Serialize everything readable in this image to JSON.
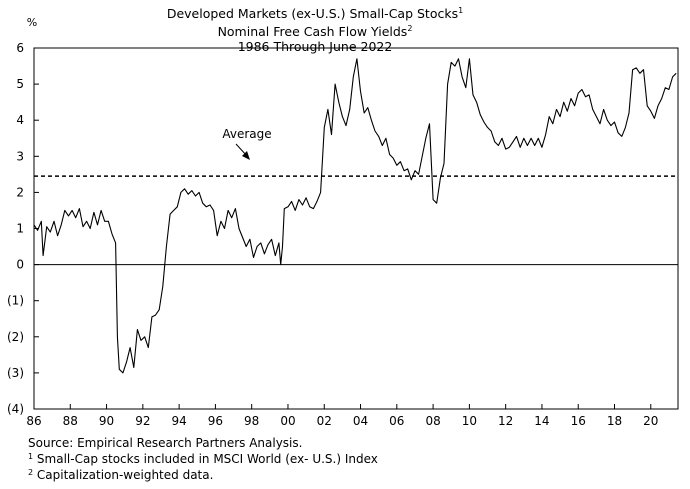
{
  "chart_data": {
    "type": "line",
    "title": "Developed Markets (ex-U.S.) Small-Cap Stocks",
    "title_mark": "1",
    "subtitle": "Nominal Free Cash Flow Yields",
    "subtitle_mark": "2",
    "period": "1986 Through June 2022",
    "ylabel": "%",
    "ylim": [
      -4,
      6
    ],
    "xlim": [
      1986,
      2021.5
    ],
    "y_ticks": [
      6,
      5,
      4,
      3,
      2,
      1,
      0,
      -1,
      -2,
      -3,
      -4
    ],
    "y_tick_labels": [
      "6",
      "5",
      "4",
      "3",
      "2",
      "1",
      "0",
      "(1)",
      "(2)",
      "(3)",
      "(4)"
    ],
    "x_ticks": [
      1986,
      1988,
      1990,
      1992,
      1994,
      1996,
      1998,
      2000,
      2002,
      2004,
      2006,
      2008,
      2010,
      2012,
      2014,
      2016,
      2018,
      2020
    ],
    "x_tick_labels": [
      "86",
      "88",
      "90",
      "92",
      "94",
      "96",
      "98",
      "00",
      "02",
      "04",
      "06",
      "08",
      "10",
      "12",
      "14",
      "16",
      "18",
      "20"
    ],
    "average": {
      "label": "Average",
      "value": 2.45
    },
    "series": [
      {
        "x": [
          1986.0,
          1986.2,
          1986.4,
          1986.5,
          1986.7,
          1986.9,
          1987.1,
          1987.3,
          1987.5,
          1987.7,
          1987.9,
          1988.1,
          1988.3,
          1988.5,
          1988.7,
          1988.9,
          1989.1,
          1989.3,
          1989.5,
          1989.7,
          1989.9,
          1990.1,
          1990.3,
          1990.5,
          1990.6,
          1990.7,
          1990.9,
          1991.1,
          1991.3,
          1991.5,
          1991.7,
          1991.9,
          1992.1,
          1992.3,
          1992.5,
          1992.7,
          1992.9,
          1993.1,
          1993.3,
          1993.5,
          1993.7,
          1993.9,
          1994.1,
          1994.3,
          1994.5,
          1994.7,
          1994.9,
          1995.1,
          1995.3,
          1995.5,
          1995.7,
          1995.9,
          1996.1,
          1996.3,
          1996.5,
          1996.7,
          1996.9,
          1997.1,
          1997.3,
          1997.5,
          1997.7,
          1997.9,
          1998.1,
          1998.3,
          1998.5,
          1998.7,
          1998.9,
          1999.1,
          1999.3,
          1999.5,
          1999.6,
          1999.7,
          1999.8,
          2000.0,
          2000.2,
          2000.4,
          2000.6,
          2000.8,
          2001.0,
          2001.2,
          2001.4,
          2001.6,
          2001.8,
          2002.0,
          2002.2,
          2002.4,
          2002.6,
          2002.8,
          2003.0,
          2003.2,
          2003.4,
          2003.6,
          2003.8,
          2004.0,
          2004.2,
          2004.4,
          2004.6,
          2004.8,
          2005.0,
          2005.2,
          2005.4,
          2005.6,
          2005.8,
          2006.0,
          2006.2,
          2006.4,
          2006.6,
          2006.8,
          2007.0,
          2007.2,
          2007.4,
          2007.6,
          2007.8,
          2008.0,
          2008.2,
          2008.4,
          2008.6,
          2008.8,
          2009.0,
          2009.2,
          2009.4,
          2009.6,
          2009.8,
          2010.0,
          2010.2,
          2010.4,
          2010.6,
          2010.8,
          2011.0,
          2011.2,
          2011.4,
          2011.6,
          2011.8,
          2012.0,
          2012.2,
          2012.4,
          2012.6,
          2012.8,
          2013.0,
          2013.2,
          2013.4,
          2013.6,
          2013.8,
          2014.0,
          2014.2,
          2014.4,
          2014.6,
          2014.8,
          2015.0,
          2015.2,
          2015.4,
          2015.6,
          2015.8,
          2016.0,
          2016.2,
          2016.4,
          2016.6,
          2016.8,
          2017.0,
          2017.2,
          2017.4,
          2017.6,
          2017.8,
          2018.0,
          2018.2,
          2018.4,
          2018.6,
          2018.8,
          2019.0,
          2019.2,
          2019.4,
          2019.6,
          2019.8,
          2020.0,
          2020.2,
          2020.4,
          2020.6,
          2020.8,
          2021.0,
          2021.2,
          2021.4
        ],
        "values": [
          1.1,
          0.95,
          1.2,
          0.25,
          1.05,
          0.9,
          1.2,
          0.8,
          1.1,
          1.5,
          1.35,
          1.5,
          1.3,
          1.55,
          1.05,
          1.2,
          1.0,
          1.45,
          1.1,
          1.5,
          1.2,
          1.2,
          0.85,
          0.6,
          -2.0,
          -2.9,
          -3.0,
          -2.7,
          -2.3,
          -2.85,
          -1.8,
          -2.1,
          -2.0,
          -2.3,
          -1.45,
          -1.4,
          -1.25,
          -0.6,
          0.5,
          1.4,
          1.5,
          1.6,
          2.0,
          2.1,
          1.95,
          2.05,
          1.9,
          2.0,
          1.7,
          1.6,
          1.65,
          1.5,
          0.8,
          1.2,
          1.0,
          1.5,
          1.3,
          1.55,
          1.0,
          0.75,
          0.5,
          0.7,
          0.2,
          0.5,
          0.6,
          0.3,
          0.55,
          0.7,
          0.25,
          0.6,
          0.0,
          0.5,
          1.55,
          1.6,
          1.75,
          1.5,
          1.8,
          1.65,
          1.85,
          1.6,
          1.55,
          1.75,
          2.0,
          3.8,
          4.3,
          3.6,
          5.0,
          4.5,
          4.1,
          3.85,
          4.3,
          5.2,
          5.7,
          4.8,
          4.2,
          4.35,
          4.0,
          3.7,
          3.55,
          3.3,
          3.5,
          3.05,
          2.95,
          2.75,
          2.85,
          2.6,
          2.65,
          2.35,
          2.6,
          2.5,
          3.0,
          3.5,
          3.9,
          1.8,
          1.7,
          2.4,
          2.8,
          5.0,
          5.6,
          5.5,
          5.7,
          5.2,
          4.9,
          5.7,
          4.7,
          4.5,
          4.15,
          3.95,
          3.8,
          3.7,
          3.4,
          3.3,
          3.5,
          3.2,
          3.25,
          3.4,
          3.55,
          3.25,
          3.5,
          3.3,
          3.5,
          3.3,
          3.5,
          3.25,
          3.6,
          4.1,
          3.9,
          4.3,
          4.1,
          4.5,
          4.25,
          4.6,
          4.4,
          4.75,
          4.85,
          4.65,
          4.7,
          4.3,
          4.1,
          3.9,
          4.3,
          4.0,
          3.85,
          3.95,
          3.65,
          3.55,
          3.8,
          4.2,
          5.4,
          5.45,
          5.3,
          5.4,
          4.4,
          4.25,
          4.05,
          4.4,
          4.6,
          4.9,
          4.85,
          5.2,
          5.3
        ]
      }
    ],
    "grid": false
  },
  "footnotes": {
    "source": "Source:  Empirical Research Partners Analysis.",
    "note1_mark": "1",
    "note1": "Small-Cap stocks included in MSCI World (ex- U.S.) Index",
    "note2_mark": "2",
    "note2": "Capitalization-weighted data."
  }
}
